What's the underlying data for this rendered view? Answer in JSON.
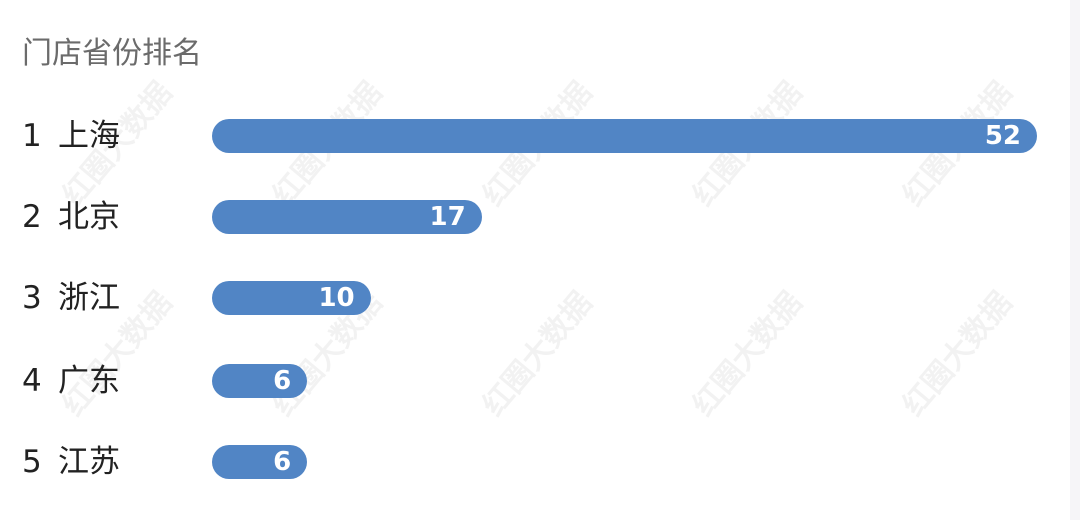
{
  "watermark": "红圈大数据",
  "chart_data": {
    "type": "bar",
    "orientation": "horizontal",
    "title": "门店省份排名",
    "categories": [
      "上海",
      "北京",
      "浙江",
      "广东",
      "江苏"
    ],
    "ranks": [
      "1",
      "2",
      "3",
      "4",
      "5"
    ],
    "values": [
      52,
      17,
      10,
      6,
      6
    ],
    "bar_color": "#5185c5",
    "grid": false,
    "data_labels": true
  }
}
